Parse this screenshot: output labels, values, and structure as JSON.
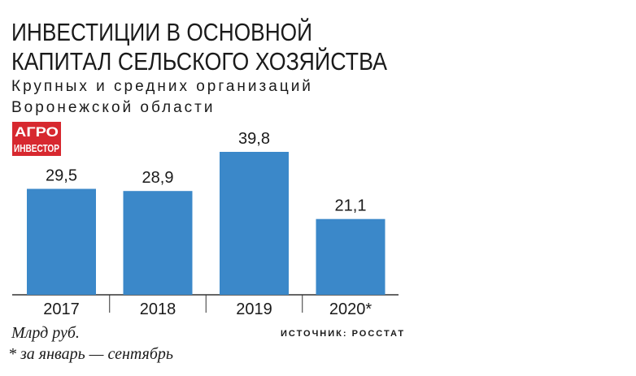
{
  "chart_data": {
    "type": "bar",
    "title": [
      "ИНВЕСТИЦИИ В ОСНОВНОЙ",
      "КАПИТАЛ СЕЛЬСКОГО ХОЗЯЙСТВА"
    ],
    "subtitle": [
      "Крупных и средних организаций",
      "Воронежской области"
    ],
    "logo": [
      "АГРО",
      "ИНВЕСТОР"
    ],
    "categories": [
      "2017",
      "2018",
      "2019",
      "2020*"
    ],
    "values": [
      29.5,
      28.9,
      39.8,
      21.1
    ],
    "value_labels": [
      "29,5",
      "28,9",
      "39,8",
      "21,1"
    ],
    "color": "#3b88c9",
    "unit": "Млрд руб.",
    "source": "ИСТОЧНИК: РОССТАТ",
    "footnote": "* за январь — сентябрь"
  }
}
